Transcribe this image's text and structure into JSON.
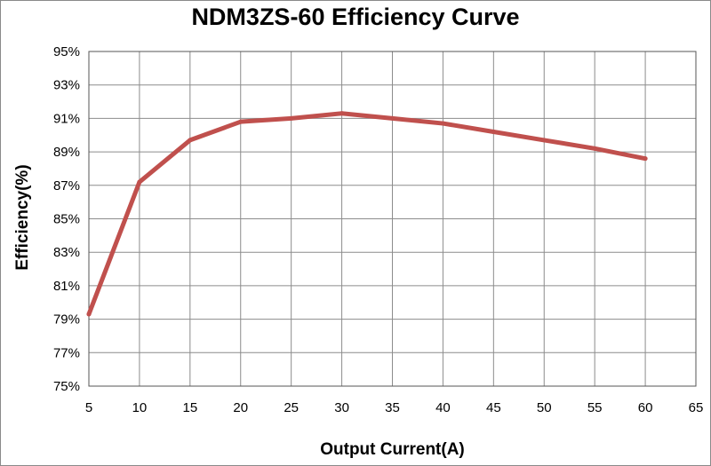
{
  "chart_data": {
    "type": "line",
    "title": "NDM3ZS-60 Efficiency Curve",
    "xlabel": "Output Current(A)",
    "ylabel": "Efficiency(%)",
    "xlim": [
      5,
      65
    ],
    "ylim": [
      75,
      95
    ],
    "x_ticks": [
      "5",
      "10",
      "15",
      "20",
      "25",
      "30",
      "35",
      "40",
      "45",
      "50",
      "55",
      "60",
      "65"
    ],
    "y_ticks": [
      "75%",
      "77%",
      "79%",
      "81%",
      "83%",
      "85%",
      "87%",
      "89%",
      "91%",
      "93%",
      "95%"
    ],
    "grid": true,
    "series": [
      {
        "color": "#c0504d",
        "x": [
          5,
          10,
          15,
          20,
          25,
          30,
          35,
          40,
          45,
          50,
          55,
          60
        ],
        "y": [
          79.3,
          87.2,
          89.7,
          90.8,
          91.0,
          91.3,
          91.0,
          90.7,
          90.2,
          89.7,
          89.2,
          88.6
        ]
      }
    ]
  }
}
